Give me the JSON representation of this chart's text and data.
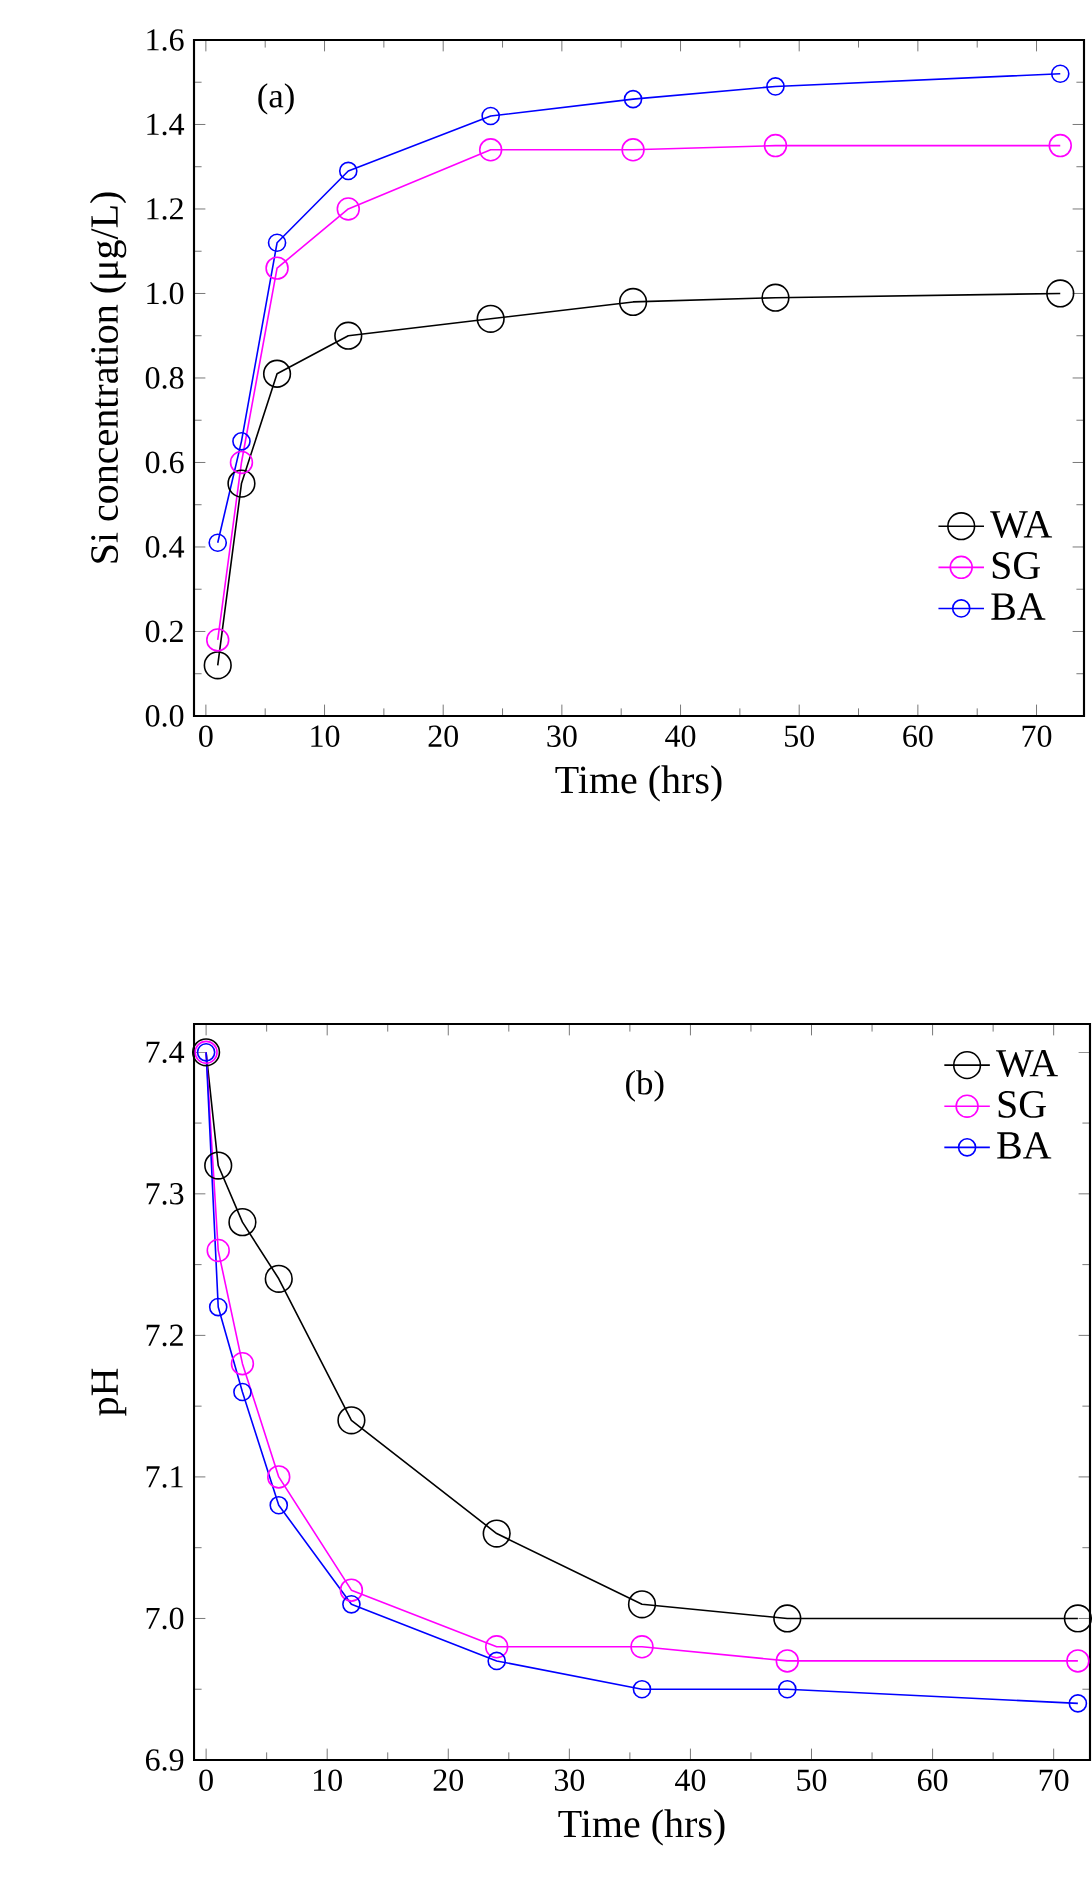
{
  "chart_data": [
    {
      "type": "line",
      "xlabel": "Time (hrs)",
      "ylabel": "Si concentration (μg/L)",
      "annotations": [
        "(a)"
      ],
      "marker": "circle",
      "legend": "bottom right",
      "grid": false,
      "x": [
        1,
        3,
        6,
        12,
        24,
        36,
        48,
        72
      ],
      "xlim": [
        -1,
        74
      ],
      "xticks": [
        0,
        10,
        20,
        30,
        40,
        50,
        60,
        70
      ],
      "ylim": [
        0,
        1.6
      ],
      "yticks": [
        {
          "value": 0,
          "label": "0.0"
        },
        0.2,
        0.4,
        0.6,
        0.8,
        {
          "value": 1,
          "label": "1.0"
        },
        1.2,
        1.4,
        1.6
      ],
      "series": [
        {
          "name": "WA",
          "color": "#000000",
          "values": [
            0.12,
            0.55,
            0.81,
            0.9,
            0.94,
            0.98,
            0.99,
            1.0
          ]
        },
        {
          "name": "SG",
          "color": "#ff00ff",
          "values": [
            0.18,
            0.6,
            1.06,
            1.2,
            1.34,
            1.34,
            1.35,
            1.35
          ]
        },
        {
          "name": "BA",
          "color": "#0000ff",
          "values": [
            0.41,
            0.65,
            1.12,
            1.29,
            1.42,
            1.46,
            1.49,
            1.52
          ]
        }
      ]
    },
    {
      "type": "line",
      "xlabel": "Time (hrs)",
      "ylabel": "pH",
      "annotations": [
        "(b)"
      ],
      "marker": "circle",
      "legend": "top right",
      "grid": false,
      "x": [
        0,
        1,
        3,
        6,
        12,
        24,
        36,
        48,
        72
      ],
      "xlim": [
        -1,
        73
      ],
      "xticks": [
        0,
        10,
        20,
        30,
        40,
        50,
        60,
        70
      ],
      "ylim": [
        6.9,
        7.42
      ],
      "yticks": [
        6.9,
        {
          "value": 7.0,
          "label": "7.0"
        },
        7.1,
        7.2,
        7.3,
        7.4
      ],
      "series": [
        {
          "name": "WA",
          "color": "#000000",
          "values": [
            7.4,
            7.32,
            7.28,
            7.24,
            7.14,
            7.06,
            7.01,
            7.0,
            7.0
          ]
        },
        {
          "name": "SG",
          "color": "#ff00ff",
          "values": [
            7.4,
            7.26,
            7.18,
            7.1,
            7.02,
            6.98,
            6.98,
            6.97,
            6.97
          ]
        },
        {
          "name": "BA",
          "color": "#0000ff",
          "values": [
            7.4,
            7.22,
            7.16,
            7.08,
            7.01,
            6.97,
            6.95,
            6.95,
            6.94
          ]
        }
      ]
    }
  ]
}
